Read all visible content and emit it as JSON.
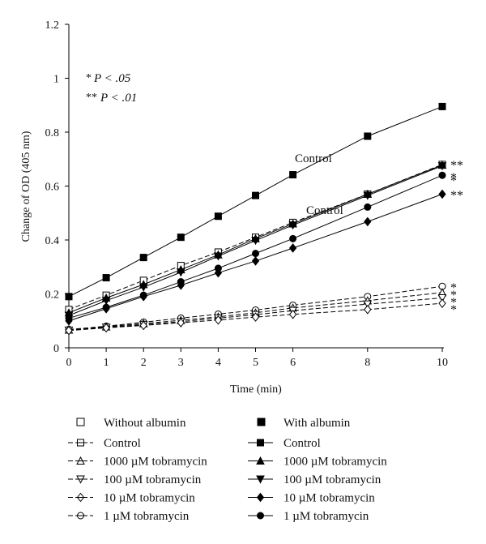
{
  "chart_data": {
    "type": "line",
    "xlabel": "Time (min)",
    "ylabel": "Change of OD (405 nm)",
    "x_ticks": [
      0,
      1,
      2,
      3,
      4,
      5,
      6,
      8,
      10
    ],
    "y_ticks": [
      "0",
      "0.2",
      "0.4",
      "0.6",
      "0.8",
      "1",
      "1.2"
    ],
    "ylim": [
      0,
      1.2
    ],
    "x": [
      0,
      1,
      2,
      3,
      4,
      5,
      6,
      8,
      10
    ],
    "series": [
      {
        "name": "With albumin Control",
        "group": "with",
        "marker": "square",
        "dashed": false,
        "values": [
          0.19,
          0.26,
          0.335,
          0.41,
          0.488,
          0.565,
          0.642,
          0.785,
          0.895
        ]
      },
      {
        "name": "With albumin 1000 µM tobramycin",
        "group": "with",
        "marker": "triangle-up",
        "dashed": false,
        "values": [
          0.13,
          0.185,
          0.235,
          0.29,
          0.345,
          0.405,
          0.46,
          0.57,
          0.678
        ]
      },
      {
        "name": "With albumin 100 µM tobramycin",
        "group": "with",
        "marker": "triangle-down",
        "dashed": false,
        "values": [
          0.12,
          0.175,
          0.225,
          0.28,
          0.34,
          0.398,
          0.455,
          0.565,
          0.675
        ]
      },
      {
        "name": "With albumin 1 µM tobramycin",
        "group": "with",
        "marker": "circle",
        "dashed": false,
        "values": [
          0.11,
          0.15,
          0.195,
          0.245,
          0.295,
          0.35,
          0.405,
          0.522,
          0.64
        ]
      },
      {
        "name": "With albumin 10 µM tobramycin",
        "group": "with",
        "marker": "diamond",
        "dashed": false,
        "values": [
          0.1,
          0.145,
          0.19,
          0.232,
          0.278,
          0.322,
          0.37,
          0.468,
          0.57
        ]
      },
      {
        "name": "Without albumin Control",
        "group": "without",
        "marker": "square",
        "dashed": true,
        "values": [
          0.142,
          0.195,
          0.25,
          0.305,
          0.355,
          0.41,
          0.465,
          0.57,
          0.68
        ]
      },
      {
        "name": "Without albumin 1 µM tobramycin",
        "group": "without",
        "marker": "circle",
        "dashed": true,
        "values": [
          0.068,
          0.08,
          0.095,
          0.11,
          0.125,
          0.14,
          0.158,
          0.19,
          0.228
        ]
      },
      {
        "name": "Without albumin 1000 µM tobramycin",
        "group": "without",
        "marker": "triangle-up",
        "dashed": true,
        "values": [
          0.066,
          0.078,
          0.09,
          0.102,
          0.115,
          0.13,
          0.148,
          0.175,
          0.205
        ]
      },
      {
        "name": "Without albumin 100 µM tobramycin",
        "group": "without",
        "marker": "triangle-down",
        "dashed": true,
        "values": [
          0.065,
          0.076,
          0.086,
          0.097,
          0.11,
          0.123,
          0.138,
          0.162,
          0.185
        ]
      },
      {
        "name": "Without albumin 10 µM tobramycin",
        "group": "without",
        "marker": "diamond",
        "dashed": true,
        "values": [
          0.064,
          0.074,
          0.083,
          0.093,
          0.103,
          0.114,
          0.124,
          0.142,
          0.165
        ]
      }
    ],
    "annotations": {
      "sig1_star": "*",
      "sig1_text": "P < .05",
      "sig2_star": "**",
      "sig2_text": "P < .01",
      "control_label_with": "Control",
      "control_label_without": "Control",
      "end_stars_with": [
        "**",
        "*",
        "*",
        "**"
      ],
      "end_stars_without": [
        "*",
        "*",
        "*",
        "*"
      ]
    },
    "legend": {
      "without_header": "Without albumin",
      "with_header": "With albumin",
      "without_items": [
        "Control",
        "1000 µM tobramycin",
        "100 µM tobramycin",
        "10 µM tobramycin",
        "1 µM tobramycin"
      ],
      "with_items": [
        "Control",
        "1000 µM tobramycin",
        "100 µM tobramycin",
        "10 µM tobramycin",
        "1 µM tobramycin"
      ]
    }
  }
}
